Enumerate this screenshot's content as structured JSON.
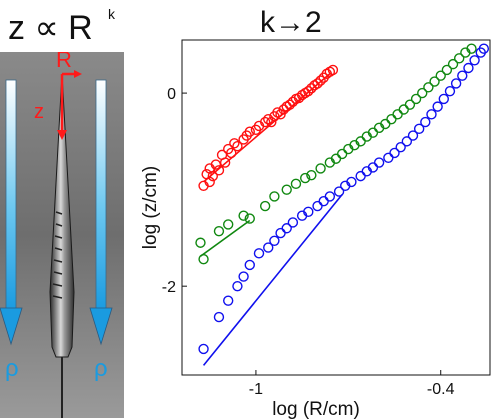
{
  "left_panel": {
    "title_main": "z ∝ R",
    "title_exp": "k",
    "label_R": "R",
    "label_z": "z",
    "label_rho_left": "ρ",
    "label_rho_right": "ρ"
  },
  "chart_data": {
    "type": "scatter",
    "title": "k→2",
    "xlabel": "log (R/cm)",
    "ylabel": "log (z/cm)",
    "xlim": [
      -1.24,
      -0.24
    ],
    "ylim": [
      -2.92,
      0.55
    ],
    "xticks": [
      -1,
      -0.4
    ],
    "xtick_labels": [
      "-1",
      "-0.4"
    ],
    "yticks": [
      0,
      -2
    ],
    "ytick_labels": [
      "0",
      "-2"
    ],
    "grid": false,
    "legend": "none",
    "series": [
      {
        "color": "#ff1010",
        "points": [
          [
            -1.17,
            -0.96
          ],
          [
            -1.16,
            -0.84
          ],
          [
            -1.15,
            -0.92
          ],
          [
            -1.15,
            -0.78
          ],
          [
            -1.14,
            -0.86
          ],
          [
            -1.13,
            -0.74
          ],
          [
            -1.12,
            -0.8
          ],
          [
            -1.11,
            -0.64
          ],
          [
            -1.1,
            -0.72
          ],
          [
            -1.09,
            -0.58
          ],
          [
            -1.08,
            -0.62
          ],
          [
            -1.07,
            -0.52
          ],
          [
            -1.06,
            -0.55
          ],
          [
            -1.04,
            -0.48
          ],
          [
            -1.03,
            -0.44
          ],
          [
            -1.02,
            -0.4
          ],
          [
            -1.0,
            -0.38
          ],
          [
            -0.99,
            -0.34
          ],
          [
            -0.97,
            -0.3
          ],
          [
            -0.96,
            -0.27
          ],
          [
            -0.95,
            -0.3
          ],
          [
            -0.94,
            -0.24
          ],
          [
            -0.93,
            -0.2
          ],
          [
            -0.92,
            -0.22
          ],
          [
            -0.91,
            -0.17
          ],
          [
            -0.9,
            -0.14
          ],
          [
            -0.89,
            -0.12
          ],
          [
            -0.88,
            -0.09
          ],
          [
            -0.87,
            -0.06
          ],
          [
            -0.86,
            -0.05
          ],
          [
            -0.85,
            -0.02
          ],
          [
            -0.84,
            0.0
          ],
          [
            -0.83,
            0.02
          ],
          [
            -0.82,
            0.05
          ],
          [
            -0.81,
            0.08
          ],
          [
            -0.8,
            0.1
          ],
          [
            -0.79,
            0.13
          ],
          [
            -0.78,
            0.16
          ],
          [
            -0.77,
            0.2
          ],
          [
            -0.76,
            0.22
          ],
          [
            -0.75,
            0.24
          ]
        ],
        "fit": [
          [
            -1.17,
            -0.92
          ],
          [
            -0.76,
            0.2
          ]
        ]
      },
      {
        "color": "#108810",
        "points": [
          [
            -1.18,
            -1.55
          ],
          [
            -1.17,
            -1.72
          ],
          [
            -1.12,
            -1.43
          ],
          [
            -1.09,
            -1.36
          ],
          [
            -1.04,
            -1.27
          ],
          [
            -1.02,
            -1.3
          ],
          [
            -0.97,
            -1.17
          ],
          [
            -0.94,
            -1.07
          ],
          [
            -0.9,
            -1.0
          ],
          [
            -0.87,
            -0.94
          ],
          [
            -0.84,
            -0.88
          ],
          [
            -0.82,
            -0.85
          ],
          [
            -0.79,
            -0.78
          ],
          [
            -0.76,
            -0.72
          ],
          [
            -0.74,
            -0.68
          ],
          [
            -0.72,
            -0.63
          ],
          [
            -0.7,
            -0.58
          ],
          [
            -0.68,
            -0.54
          ],
          [
            -0.66,
            -0.5
          ],
          [
            -0.64,
            -0.45
          ],
          [
            -0.62,
            -0.41
          ],
          [
            -0.6,
            -0.36
          ],
          [
            -0.58,
            -0.32
          ],
          [
            -0.56,
            -0.27
          ],
          [
            -0.54,
            -0.22
          ],
          [
            -0.52,
            -0.17
          ],
          [
            -0.5,
            -0.12
          ],
          [
            -0.48,
            -0.06
          ],
          [
            -0.46,
            0.0
          ],
          [
            -0.44,
            0.06
          ],
          [
            -0.42,
            0.12
          ],
          [
            -0.4,
            0.18
          ],
          [
            -0.38,
            0.24
          ],
          [
            -0.36,
            0.3
          ],
          [
            -0.34,
            0.36
          ],
          [
            -0.32,
            0.42
          ],
          [
            -0.3,
            0.46
          ]
        ],
        "fit": [
          [
            -1.18,
            -1.69
          ],
          [
            -1.02,
            -1.32
          ]
        ]
      },
      {
        "color": "#1010ee",
        "points": [
          [
            -1.17,
            -2.65
          ],
          [
            -1.12,
            -2.32
          ],
          [
            -1.09,
            -2.15
          ],
          [
            -1.06,
            -2.0
          ],
          [
            -1.04,
            -1.9
          ],
          [
            -1.02,
            -1.78
          ],
          [
            -0.99,
            -1.66
          ],
          [
            -0.96,
            -1.6
          ],
          [
            -0.94,
            -1.53
          ],
          [
            -0.92,
            -1.45
          ],
          [
            -0.9,
            -1.4
          ],
          [
            -0.88,
            -1.34
          ],
          [
            -0.85,
            -1.27
          ],
          [
            -0.83,
            -1.23
          ],
          [
            -0.8,
            -1.17
          ],
          [
            -0.78,
            -1.12
          ],
          [
            -0.76,
            -1.07
          ],
          [
            -0.73,
            -1.02
          ],
          [
            -0.71,
            -0.96
          ],
          [
            -0.69,
            -0.92
          ],
          [
            -0.66,
            -0.86
          ],
          [
            -0.64,
            -0.81
          ],
          [
            -0.62,
            -0.77
          ],
          [
            -0.6,
            -0.72
          ],
          [
            -0.57,
            -0.67
          ],
          [
            -0.55,
            -0.62
          ],
          [
            -0.53,
            -0.56
          ],
          [
            -0.51,
            -0.5
          ],
          [
            -0.49,
            -0.44
          ],
          [
            -0.47,
            -0.37
          ],
          [
            -0.45,
            -0.3
          ],
          [
            -0.43,
            -0.22
          ],
          [
            -0.41,
            -0.14
          ],
          [
            -0.39,
            -0.06
          ],
          [
            -0.37,
            0.02
          ],
          [
            -0.35,
            0.1
          ],
          [
            -0.33,
            0.18
          ],
          [
            -0.31,
            0.26
          ],
          [
            -0.29,
            0.34
          ],
          [
            -0.27,
            0.42
          ],
          [
            -0.26,
            0.46
          ]
        ],
        "fit": [
          [
            -1.17,
            -2.82
          ],
          [
            -0.72,
            -1.05
          ]
        ]
      }
    ]
  }
}
